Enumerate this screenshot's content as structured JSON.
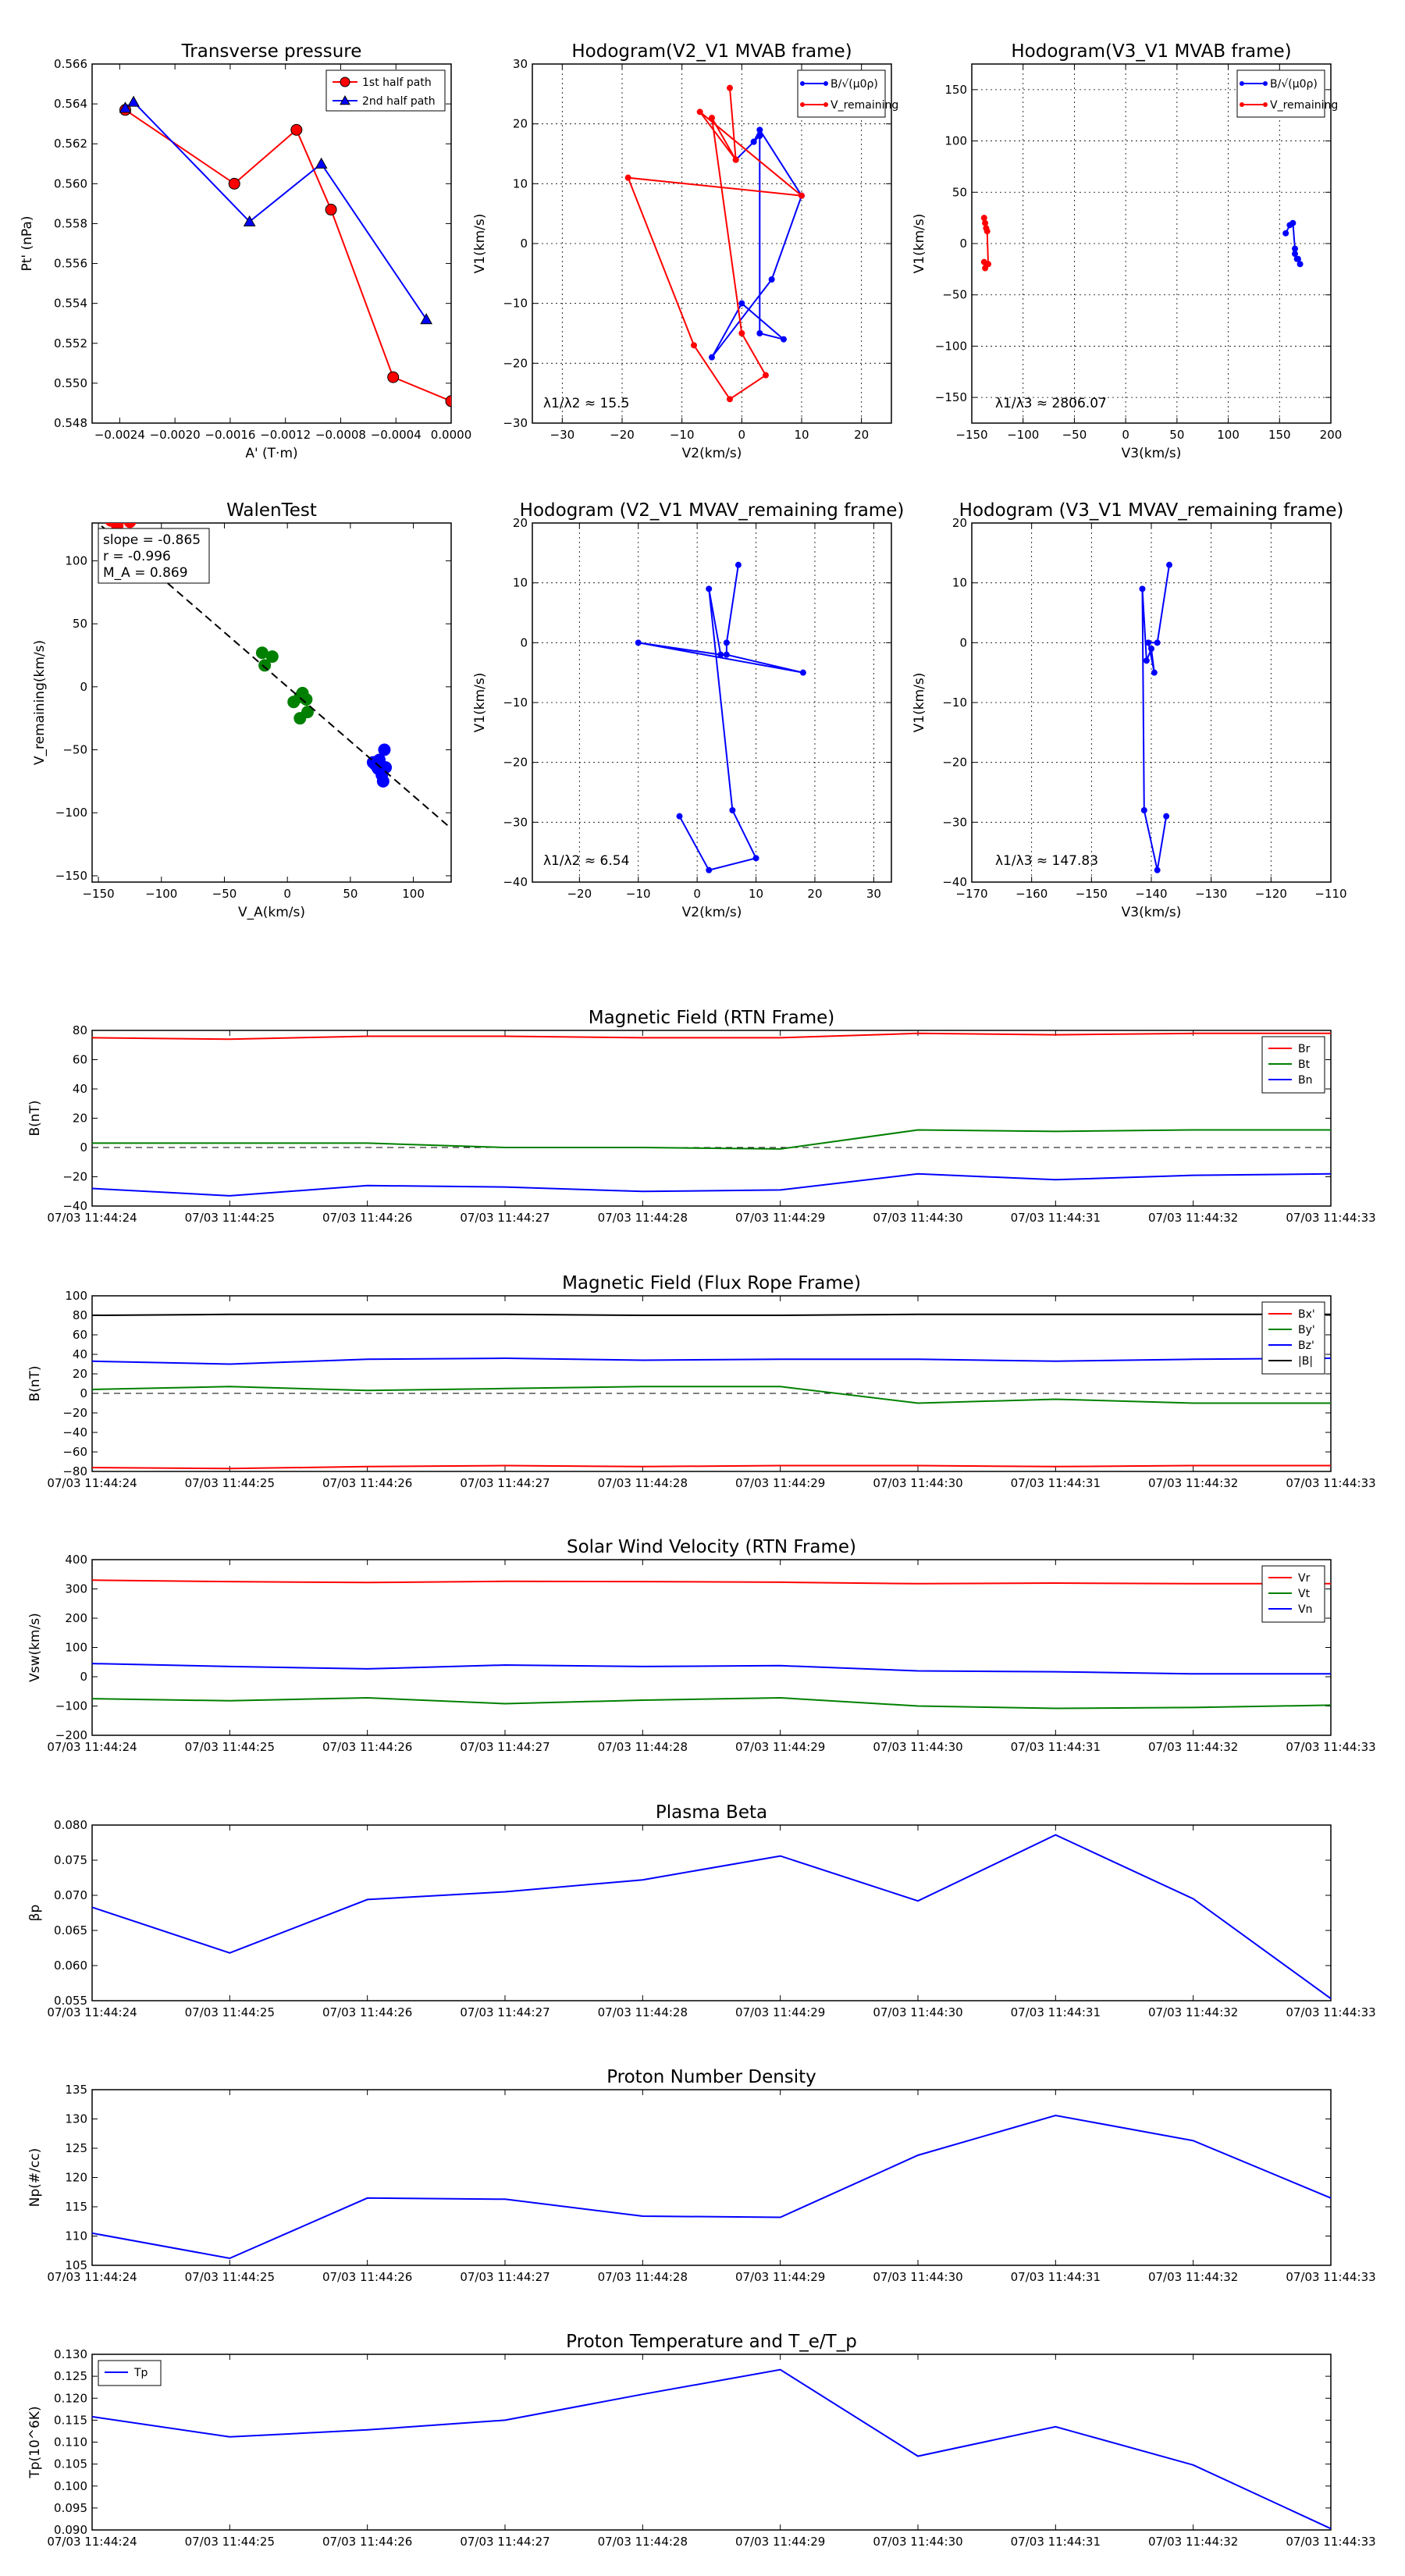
{
  "chart_data": [
    {
      "id": "pt",
      "type": "line",
      "title": "Transverse pressure",
      "xlabel": "A' (T·m)",
      "ylabel": "Pt' (nPa)",
      "xlim": [
        -0.0026,
        0.0
      ],
      "ylim": [
        0.548,
        0.566
      ],
      "xticks": [
        -0.0024,
        -0.002,
        -0.0016,
        -0.0012,
        -0.0008,
        -0.0004,
        0.0
      ],
      "xtick_labels": [
        "−0.0024",
        "−0.0020",
        "−0.0016",
        "−0.0012",
        "−0.0008",
        "−0.0004",
        "0.0000"
      ],
      "yticks": [
        0.548,
        0.55,
        0.552,
        0.554,
        0.556,
        0.558,
        0.56,
        0.562,
        0.564,
        0.566
      ],
      "ytick_labels": [
        "0.548",
        "0.550",
        "0.552",
        "0.554",
        "0.556",
        "0.558",
        "0.560",
        "0.562",
        "0.564",
        "0.566"
      ],
      "grid": false,
      "legend": "top-right",
      "series": [
        {
          "name": "1st half path",
          "color": "#ff0000",
          "marker": "circle",
          "x": [
            -0.00236,
            -0.00157,
            -0.00112,
            -0.00087,
            -0.00042,
            0.0
          ],
          "y": [
            0.5637,
            0.56,
            0.5627,
            0.5587,
            0.5503,
            0.5491
          ]
        },
        {
          "name": "2nd half path",
          "color": "#0000ff",
          "marker": "triangle",
          "x": [
            -0.00236,
            -0.0023,
            -0.00146,
            -0.00094,
            -0.00018
          ],
          "y": [
            0.5638,
            0.5641,
            0.5581,
            0.561,
            0.5532
          ]
        }
      ]
    },
    {
      "id": "h1",
      "type": "line",
      "title": "Hodogram(V2_V1 MVAB frame)",
      "xlabel": "V2(km/s)",
      "ylabel": "V1(km/s)",
      "xlim": [
        -35,
        25
      ],
      "ylim": [
        -30,
        30
      ],
      "xticks": [
        -30,
        -20,
        -10,
        0,
        10,
        20
      ],
      "xtick_labels": [
        "−30",
        "−20",
        "−10",
        "0",
        "10",
        "20"
      ],
      "yticks": [
        -30,
        -20,
        -10,
        0,
        10,
        20,
        30
      ],
      "ytick_labels": [
        "−30",
        "−20",
        "−10",
        "0",
        "10",
        "20",
        "30"
      ],
      "grid": true,
      "legend": "top-right",
      "annotation": "λ1/λ2 ≈ 15.5",
      "series": [
        {
          "name": "B/√(μ0ρ)",
          "color": "#0000ff",
          "marker": "dot",
          "x": [
            -1,
            2,
            3,
            10,
            5,
            -5,
            0,
            7,
            3,
            3,
            2
          ],
          "y": [
            14,
            17,
            19,
            8,
            -6,
            -19,
            -10,
            -16,
            -15,
            18,
            17
          ]
        },
        {
          "name": "V_remaining",
          "color": "#ff0000",
          "marker": "dot",
          "x": [
            -2,
            -1,
            -7,
            10,
            -19,
            -8,
            -2,
            4,
            0,
            -5,
            -1
          ],
          "y": [
            26,
            14,
            22,
            8,
            11,
            -17,
            -26,
            -22,
            -15,
            21,
            14
          ]
        }
      ]
    },
    {
      "id": "h2",
      "type": "scatter",
      "title": "Hodogram(V3_V1 MVAB frame)",
      "xlabel": "V3(km/s)",
      "ylabel": "V1(km/s)",
      "xlim": [
        -150,
        200
      ],
      "ylim": [
        -175,
        175
      ],
      "xticks": [
        -150,
        -100,
        -50,
        0,
        50,
        100,
        150,
        200
      ],
      "xtick_labels": [
        "−150",
        "−100",
        "−50",
        "0",
        "50",
        "100",
        "150",
        "200"
      ],
      "yticks": [
        -150,
        -100,
        -50,
        0,
        50,
        100,
        150
      ],
      "ytick_labels": [
        "−150",
        "−100",
        "−50",
        "0",
        "50",
        "100",
        "150"
      ],
      "grid": true,
      "legend": "top-right",
      "annotation": "λ1/λ3 ≈ 2806.07",
      "series": [
        {
          "name": "B/√(μ0ρ)",
          "color": "#0000ff",
          "marker": "dot",
          "x": [
            156,
            160,
            163,
            165,
            167,
            170,
            168,
            165
          ],
          "y": [
            10,
            18,
            20,
            -5,
            -15,
            -20,
            -15,
            -10
          ]
        },
        {
          "name": "V_remaining",
          "color": "#ff0000",
          "marker": "dot",
          "x": [
            -138,
            -137,
            -136,
            -135,
            -134,
            -137,
            -138
          ],
          "y": [
            25,
            20,
            15,
            12,
            -20,
            -24,
            -18
          ]
        }
      ]
    },
    {
      "id": "walen",
      "type": "scatter",
      "title": "WalenTest",
      "xlabel": "V_A(km/s)",
      "ylabel": "V_remaining(km/s)",
      "xlim": [
        -155,
        130
      ],
      "ylim": [
        -155,
        130
      ],
      "xticks": [
        -150,
        -100,
        -50,
        0,
        50,
        100
      ],
      "xtick_labels": [
        "−150",
        "−100",
        "−50",
        "0",
        "50",
        "100"
      ],
      "yticks": [
        -150,
        -100,
        -50,
        0,
        50,
        100
      ],
      "ytick_labels": [
        "−150",
        "−100",
        "−50",
        "0",
        "50",
        "100"
      ],
      "grid": false,
      "fit_slope": -0.865,
      "stats": [
        "slope = -0.865",
        "r = -0.996",
        "M_A = 0.869"
      ],
      "series": [
        {
          "name": "red",
          "color": "#ff0000",
          "x": [
            -140,
            -135,
            -125
          ],
          "y": [
            132,
            128,
            131
          ]
        },
        {
          "name": "green",
          "color": "#008000",
          "x": [
            -20,
            -18,
            -12,
            5,
            10,
            12,
            15,
            10,
            16
          ],
          "y": [
            27,
            17,
            24,
            -12,
            -8,
            -5,
            -10,
            -25,
            -20
          ]
        },
        {
          "name": "blue",
          "color": "#0000ff",
          "x": [
            68,
            70,
            72,
            74,
            75,
            76,
            77,
            73,
            71,
            78
          ],
          "y": [
            -60,
            -62,
            -65,
            -66,
            -70,
            -75,
            -50,
            -58,
            -63,
            -64
          ]
        }
      ]
    },
    {
      "id": "h3",
      "type": "line",
      "title": "Hodogram (V2_V1 MVAV_remaining frame)",
      "xlabel": "V2(km/s)",
      "ylabel": "V1(km/s)",
      "xlim": [
        -28,
        33
      ],
      "ylim": [
        -40,
        20
      ],
      "xticks": [
        -20,
        -10,
        0,
        10,
        20,
        30
      ],
      "xtick_labels": [
        "−20",
        "−10",
        "0",
        "10",
        "20",
        "30"
      ],
      "yticks": [
        -40,
        -30,
        -20,
        -10,
        0,
        10,
        20
      ],
      "ytick_labels": [
        "−40",
        "−30",
        "−20",
        "−10",
        "0",
        "10",
        "20"
      ],
      "grid": true,
      "annotation": "λ1/λ2 ≈ 6.54",
      "series": [
        {
          "name": "B",
          "color": "#0000ff",
          "marker": "dot",
          "x": [
            7,
            5,
            5,
            18,
            -10,
            4,
            2,
            6,
            10,
            2,
            -3
          ],
          "y": [
            13,
            0,
            -2,
            -5,
            0,
            -2,
            9,
            -28,
            -36,
            -38,
            -29
          ]
        }
      ]
    },
    {
      "id": "h4",
      "type": "line",
      "title": "Hodogram (V3_V1 MVAV_remaining frame)",
      "xlabel": "V3(km/s)",
      "ylabel": "V1(km/s)",
      "xlim": [
        -170,
        -110
      ],
      "ylim": [
        -40,
        20
      ],
      "xticks": [
        -170,
        -160,
        -150,
        -140,
        -130,
        -120,
        -110
      ],
      "xtick_labels": [
        "−170",
        "−160",
        "−150",
        "−140",
        "−130",
        "−120",
        "−110"
      ],
      "yticks": [
        -40,
        -30,
        -20,
        -10,
        0,
        10,
        20
      ],
      "ytick_labels": [
        "−40",
        "−30",
        "−20",
        "−10",
        "0",
        "10",
        "20"
      ],
      "grid": true,
      "annotation": "λ1/λ3 ≈ 147.83",
      "series": [
        {
          "name": "B",
          "color": "#0000ff",
          "marker": "dot",
          "x": [
            -137,
            -139,
            -140.5,
            -139.5,
            -140,
            -140.8,
            -141.5,
            -141.2,
            -139,
            -137.5
          ],
          "y": [
            13,
            0,
            0,
            -5,
            -1,
            -3,
            9,
            -28,
            -38,
            -29
          ]
        }
      ]
    },
    {
      "id": "bf",
      "type": "line",
      "title": "Magnetic Field (RTN Frame)",
      "ylabel": "B(nT)",
      "ylim": [
        -40,
        80
      ],
      "yticks": [
        -40,
        -20,
        0,
        20,
        40,
        60,
        80
      ],
      "ytick_labels": [
        "−40",
        "−20",
        "0",
        "20",
        "40",
        "60",
        "80"
      ],
      "zero_line": true,
      "legend": "top-right",
      "series": [
        {
          "name": "Br",
          "color": "#ff0000",
          "values": [
            75,
            74,
            76,
            76,
            75,
            75,
            78,
            77,
            78,
            78
          ]
        },
        {
          "name": "Bt",
          "color": "#008000",
          "values": [
            3,
            3,
            3,
            0,
            0,
            -1,
            12,
            11,
            12,
            12
          ]
        },
        {
          "name": "Bn",
          "color": "#0000ff",
          "values": [
            -28,
            -33,
            -26,
            -27,
            -30,
            -29,
            -18,
            -22,
            -19,
            -18
          ]
        }
      ]
    },
    {
      "id": "bfr",
      "type": "line",
      "title": "Magnetic Field (Flux Rope Frame)",
      "ylabel": "B(nT)",
      "ylim": [
        -80,
        100
      ],
      "yticks": [
        -80,
        -60,
        -40,
        -20,
        0,
        20,
        40,
        60,
        80,
        100
      ],
      "ytick_labels": [
        "−80",
        "−60",
        "−40",
        "−20",
        "0",
        "20",
        "40",
        "60",
        "80",
        "100"
      ],
      "zero_line": true,
      "legend": "top-right",
      "series": [
        {
          "name": "Bx'",
          "color": "#ff0000",
          "values": [
            -76,
            -77,
            -75,
            -74,
            -75,
            -74,
            -74,
            -75,
            -74,
            -74
          ]
        },
        {
          "name": "By'",
          "color": "#008000",
          "values": [
            4,
            7,
            3,
            5,
            7,
            7,
            -10,
            -6,
            -10,
            -10
          ]
        },
        {
          "name": "Bz'",
          "color": "#0000ff",
          "values": [
            33,
            30,
            35,
            36,
            34,
            35,
            35,
            33,
            35,
            36
          ]
        },
        {
          "name": "|B|",
          "color": "#000000",
          "values": [
            80,
            81,
            81,
            81,
            80,
            80,
            81,
            81,
            81,
            81
          ]
        }
      ]
    },
    {
      "id": "vsw",
      "type": "line",
      "title": "Solar Wind Velocity (RTN Frame)",
      "ylabel": "Vsw(km/s)",
      "ylim": [
        -200,
        400
      ],
      "yticks": [
        -200,
        -100,
        0,
        100,
        200,
        300,
        400
      ],
      "ytick_labels": [
        "−200",
        "−100",
        "0",
        "100",
        "200",
        "300",
        "400"
      ],
      "zero_line": false,
      "legend": "top-right",
      "series": [
        {
          "name": "Vr",
          "color": "#ff0000",
          "values": [
            330,
            325,
            322,
            326,
            325,
            323,
            318,
            320,
            318,
            318
          ]
        },
        {
          "name": "Vt",
          "color": "#008000",
          "values": [
            -75,
            -82,
            -72,
            -92,
            -80,
            -72,
            -100,
            -108,
            -105,
            -97
          ]
        },
        {
          "name": "Vn",
          "color": "#0000ff",
          "values": [
            45,
            35,
            27,
            40,
            35,
            38,
            20,
            17,
            10,
            10
          ]
        }
      ]
    },
    {
      "id": "beta",
      "type": "line",
      "title": "Plasma Beta",
      "ylabel": "βp",
      "ylim": [
        0.055,
        0.08
      ],
      "yticks": [
        0.055,
        0.06,
        0.065,
        0.07,
        0.075,
        0.08
      ],
      "ytick_labels": [
        "0.055",
        "0.060",
        "0.065",
        "0.070",
        "0.075",
        "0.080"
      ],
      "series": [
        {
          "name": "beta",
          "color": "#0000ff",
          "values": [
            0.0683,
            0.0618,
            0.0694,
            0.0705,
            0.0722,
            0.0756,
            0.0692,
            0.0786,
            0.0695,
            0.0553
          ]
        }
      ]
    },
    {
      "id": "np",
      "type": "line",
      "title": "Proton Number Density",
      "ylabel": "Np(#/cc)",
      "ylim": [
        105,
        135
      ],
      "yticks": [
        105,
        110,
        115,
        120,
        125,
        130,
        135
      ],
      "ytick_labels": [
        "105",
        "110",
        "115",
        "120",
        "125",
        "130",
        "135"
      ],
      "series": [
        {
          "name": "Np",
          "color": "#0000ff",
          "values": [
            110.5,
            106.2,
            116.5,
            116.3,
            113.4,
            113.2,
            123.8,
            130.6,
            126.3,
            116.5
          ]
        }
      ]
    },
    {
      "id": "tp",
      "type": "line",
      "title": "Proton Temperature and T_e/T_p",
      "ylabel": "Tp(10^6K)",
      "ylim": [
        0.09,
        0.13
      ],
      "yticks": [
        0.09,
        0.095,
        0.1,
        0.105,
        0.11,
        0.115,
        0.12,
        0.125,
        0.13
      ],
      "ytick_labels": [
        "0.090",
        "0.095",
        "0.100",
        "0.105",
        "0.110",
        "0.115",
        "0.120",
        "0.125",
        "0.130"
      ],
      "legend": "top-left",
      "series": [
        {
          "name": "Tp",
          "color": "#0000ff",
          "values": [
            0.1158,
            0.1112,
            0.1128,
            0.115,
            0.1209,
            0.1265,
            0.1068,
            0.1135,
            0.1048,
            0.0903
          ]
        }
      ]
    }
  ],
  "time_labels": [
    "07/03 11:44:24",
    "07/03 11:44:25",
    "07/03 11:44:26",
    "07/03 11:44:27",
    "07/03 11:44:28",
    "07/03 11:44:29",
    "07/03 11:44:30",
    "07/03 11:44:31",
    "07/03 11:44:32",
    "07/03 11:44:33"
  ]
}
